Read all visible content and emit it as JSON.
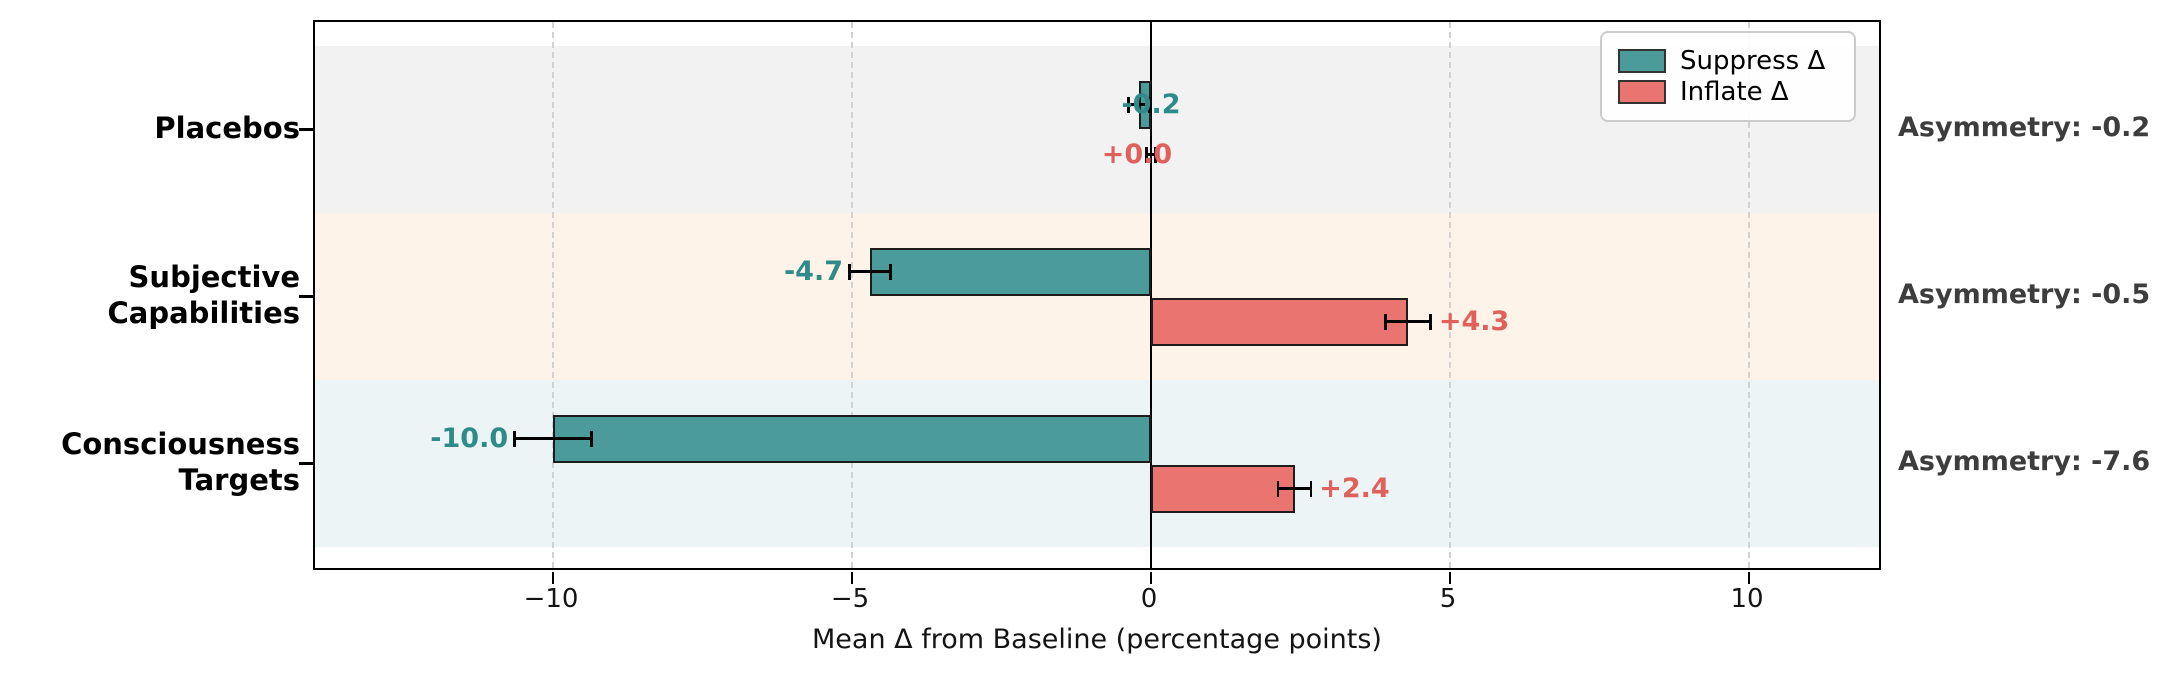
{
  "chart_data": {
    "type": "bar",
    "orientation": "horizontal",
    "xlabel": "Mean Δ from Baseline (percentage points)",
    "categories": [
      "Placebos",
      "Subjective\nCapabilities",
      "Consciousness\nTargets"
    ],
    "series": [
      {
        "name": "Suppress Δ",
        "color": "#4a9b99",
        "label_color": "#2e8b89",
        "values": [
          -0.2,
          -4.7,
          -10.0
        ],
        "errors": [
          0.18,
          0.35,
          0.65
        ],
        "labels": [
          "-0.2",
          "-4.7",
          "-10.0"
        ]
      },
      {
        "name": "Inflate Δ",
        "color": "#e97470",
        "label_color": "#e0605c",
        "values": [
          0.0,
          4.3,
          2.4
        ],
        "errors": [
          0.08,
          0.38,
          0.28
        ],
        "labels": [
          "+0.0",
          "+4.3",
          "+2.4"
        ]
      }
    ],
    "annotations": [
      "Asymmetry: -0.2",
      "Asymmetry: -0.5",
      "Asymmetry: -7.6"
    ],
    "x_ticks": [
      -10,
      -5,
      0,
      5,
      10
    ],
    "x_tick_labels": [
      "−10",
      "−5",
      "0",
      "5",
      "10"
    ],
    "xlim": [
      -14,
      12.3
    ],
    "grid": "vertical dashed at ticks",
    "zero_line": true,
    "legend": {
      "position": "upper right",
      "entries": [
        "Suppress Δ",
        "Inflate Δ"
      ]
    },
    "band_colors": [
      "#f2f2f3",
      "#fdf3e8",
      "#ecf4f6"
    ],
    "error_bar_color": "#000000",
    "bar_edge_color": "#1c1c1c"
  }
}
